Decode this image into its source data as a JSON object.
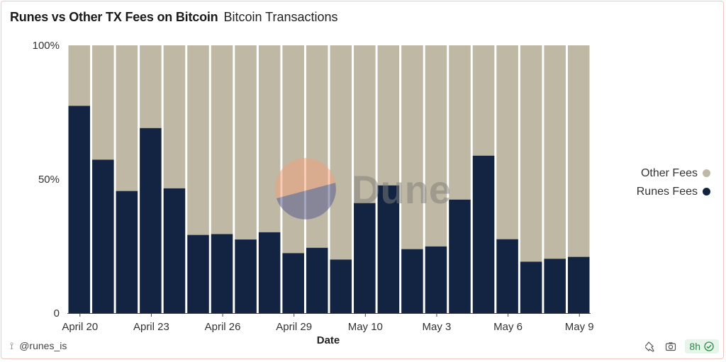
{
  "header": {
    "title": "Runes vs Other TX Fees on Bitcoin",
    "subtitle": "Bitcoin Transactions"
  },
  "legend": [
    {
      "label": "Other Fees",
      "color": "#bfb8a4"
    },
    {
      "label": "Runes Fees",
      "color": "#132443"
    }
  ],
  "watermark": {
    "text": "Dune"
  },
  "footer": {
    "author": "@runes_is",
    "age": "8h"
  },
  "chart_data": {
    "type": "bar",
    "stacked": true,
    "normalized": true,
    "xlabel": "Date",
    "ylabel": "",
    "yticks": [
      "0",
      "50%",
      "100%"
    ],
    "ylim": [
      0,
      100
    ],
    "xtick_labels": [
      "April 20",
      "April 23",
      "April 26",
      "April 29",
      "May 10",
      "May 3",
      "May 6",
      "May 9"
    ],
    "categories": [
      "April 20",
      "April 21",
      "April 22",
      "April 23",
      "April 24",
      "April 25",
      "April 26",
      "April 27",
      "April 28",
      "April 29",
      "April 30",
      "May 1",
      "May 10",
      "May 11",
      "May 2",
      "May 3",
      "May 4",
      "May 5",
      "May 6",
      "May 7",
      "May 8",
      "May 9"
    ],
    "series": [
      {
        "name": "Runes Fees",
        "color": "#132443",
        "values": [
          77.4,
          57.3,
          45.6,
          69.1,
          46.6,
          29.2,
          29.5,
          27.5,
          30.2,
          22.4,
          24.4,
          20.0,
          41.1,
          47.7,
          23.9,
          24.9,
          42.4,
          58.8,
          27.6,
          19.2,
          20.3,
          21.0
        ]
      },
      {
        "name": "Other Fees",
        "color": "#bfb8a4",
        "values": [
          22.6,
          42.7,
          54.4,
          30.9,
          53.4,
          70.8,
          70.5,
          72.5,
          69.8,
          77.6,
          75.6,
          80.0,
          58.9,
          52.3,
          76.1,
          75.1,
          57.6,
          41.2,
          72.4,
          80.8,
          79.7,
          79.0
        ]
      }
    ],
    "legend_position": "right",
    "grid": false
  }
}
